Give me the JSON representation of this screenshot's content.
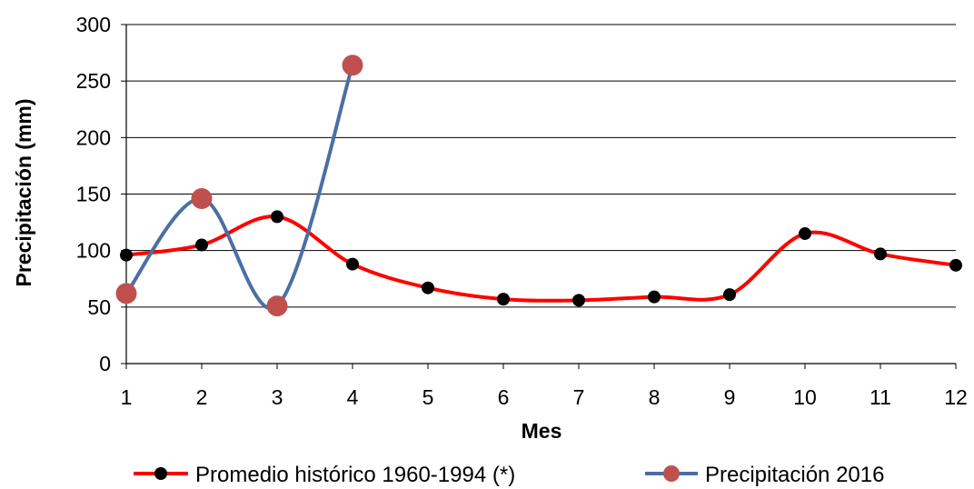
{
  "chart_data": {
    "type": "line",
    "title": "",
    "xlabel": "Mes",
    "ylabel": "Precipitación (mm)",
    "x": [
      1,
      2,
      3,
      4,
      5,
      6,
      7,
      8,
      9,
      10,
      11,
      12
    ],
    "xlim": [
      1,
      12
    ],
    "ylim": [
      0,
      300
    ],
    "yticks": [
      0,
      50,
      100,
      150,
      200,
      250,
      300
    ],
    "grid": "horizontal",
    "legend_position": "bottom",
    "series": [
      {
        "name": "Promedio histórico 1960-1994 (*)",
        "line_color": "#ff0000",
        "marker_color": "#000000",
        "x": [
          1,
          2,
          3,
          4,
          5,
          6,
          7,
          8,
          9,
          10,
          11,
          12
        ],
        "values": [
          96,
          105,
          130,
          88,
          67,
          57,
          56,
          59,
          61,
          115,
          97,
          87
        ]
      },
      {
        "name": "Precipitación 2016",
        "line_color": "#4a6fa5",
        "marker_color": "#c0504d",
        "x": [
          1,
          2,
          3,
          4
        ],
        "values": [
          62,
          146,
          51,
          264
        ]
      }
    ]
  }
}
